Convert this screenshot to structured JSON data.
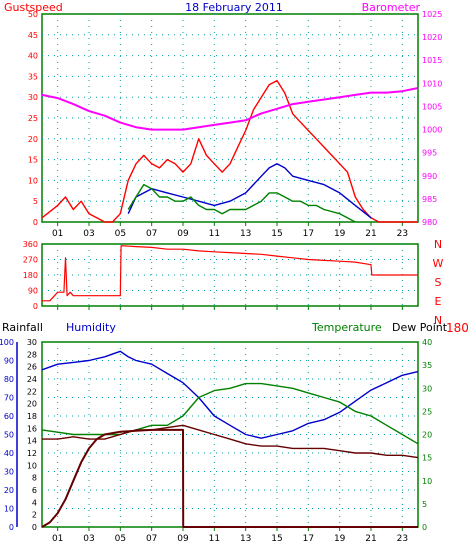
{
  "colors": {
    "red": "#ff0000",
    "green": "#008000",
    "blue": "#0000cc",
    "magenta": "#ff00ff",
    "darkred": "#660000",
    "axis": "#008000",
    "grid": "#00a0a0"
  },
  "chart_data": [
    {
      "type": "line",
      "title": "18 February 2011",
      "left_label": "Gustspeed",
      "right_label": "Barometer",
      "x_ticks": [
        "01",
        "03",
        "05",
        "07",
        "09",
        "11",
        "13",
        "15",
        "17",
        "19",
        "21",
        "23"
      ],
      "ylim_left": [
        0,
        50
      ],
      "ylim_right": [
        980,
        1025
      ],
      "yticks_left": [
        "0",
        "5",
        "10",
        "15",
        "20",
        "25",
        "30",
        "35",
        "40",
        "45",
        "50"
      ],
      "yticks_right": [
        "980",
        "985",
        "990",
        "995",
        "1000",
        "1005",
        "1010",
        "1015",
        "1020",
        "1025"
      ],
      "grid": true,
      "series": [
        {
          "color": "red",
          "axis": "left",
          "x": [
            0,
            1,
            1.5,
            2,
            2.5,
            3,
            3.5,
            4,
            4.5,
            5,
            5.5,
            6,
            6.5,
            7,
            7.5,
            8,
            8.5,
            9,
            9.5,
            10,
            10.5,
            11,
            11.5,
            12,
            12.5,
            13,
            13.5,
            14,
            14.5,
            15,
            15.5,
            16,
            16.5,
            17,
            17.5,
            18,
            18.5,
            19,
            19.5,
            20,
            20.5,
            21,
            21.5,
            22,
            23,
            24
          ],
          "y": [
            1,
            4,
            6,
            3,
            5,
            2,
            1,
            0,
            0,
            2,
            10,
            14,
            16,
            14,
            13,
            15,
            14,
            12,
            14,
            20,
            16,
            14,
            12,
            14,
            18,
            22,
            27,
            30,
            33,
            34,
            31,
            26,
            24,
            22,
            20,
            18,
            16,
            14,
            12,
            6,
            3,
            1,
            0,
            0,
            0,
            0
          ]
        },
        {
          "color": "blue",
          "axis": "left",
          "x": [
            5.5,
            6,
            7,
            8,
            9,
            10,
            11,
            12,
            13,
            14,
            14.5,
            15,
            15.5,
            16,
            17,
            18,
            19,
            20,
            21
          ],
          "y": [
            2,
            6,
            8,
            7,
            6,
            5,
            4,
            5,
            7,
            11,
            13,
            14,
            13,
            11,
            10,
            9,
            7,
            4,
            1
          ]
        },
        {
          "color": "green",
          "axis": "left",
          "x": [
            5.5,
            6,
            6.5,
            7,
            7.5,
            8,
            8.5,
            9,
            9.5,
            10,
            10.5,
            11,
            11.5,
            12,
            12.5,
            13,
            13.5,
            14,
            14.5,
            15,
            15.5,
            16,
            16.5,
            17,
            17.5,
            18,
            19,
            20
          ],
          "y": [
            3,
            6,
            9,
            8,
            6,
            6,
            5,
            5,
            6,
            4,
            3,
            3,
            2,
            3,
            3,
            3,
            4,
            5,
            7,
            7,
            6,
            5,
            5,
            4,
            4,
            3,
            2,
            0
          ]
        },
        {
          "color": "magenta",
          "axis": "right",
          "x": [
            0,
            1,
            2,
            3,
            4,
            5,
            6,
            7,
            8,
            9,
            10,
            11,
            12,
            13,
            14,
            15,
            16,
            17,
            18,
            19,
            20,
            21,
            22,
            23,
            24
          ],
          "y": [
            1007.5,
            1006.8,
            1005.5,
            1004,
            1003,
            1001.5,
            1000.5,
            1000,
            1000,
            1000,
            1000.5,
            1001,
            1001.5,
            1002,
            1003.5,
            1004.5,
            1005.5,
            1006,
            1006.5,
            1007,
            1007.5,
            1008,
            1008,
            1008.3,
            1009
          ]
        }
      ]
    },
    {
      "type": "line",
      "ylim": [
        0,
        360
      ],
      "yticks": [
        "0",
        "90",
        "180",
        "270",
        "360"
      ],
      "compass": [
        "N",
        "W",
        "S",
        "E",
        "N"
      ],
      "right_note": "180°",
      "grid": true,
      "series": [
        {
          "color": "red",
          "x": [
            0,
            0.5,
            1,
            1.4,
            1.5,
            1.6,
            1.8,
            2,
            3,
            4,
            4.5,
            5,
            5.05,
            6,
            7,
            8,
            9,
            10,
            11,
            12,
            13,
            14,
            15,
            16,
            17,
            18,
            19,
            20,
            21,
            21.05,
            24
          ],
          "y": [
            30,
            30,
            80,
            80,
            280,
            60,
            80,
            60,
            60,
            60,
            60,
            60,
            350,
            345,
            340,
            330,
            330,
            320,
            315,
            310,
            305,
            300,
            290,
            280,
            270,
            265,
            260,
            255,
            240,
            180,
            180
          ]
        }
      ]
    },
    {
      "type": "line",
      "labels": [
        "Rainfall",
        "Humidity",
        "Temperature",
        "Dew Point"
      ],
      "ylim_rain": [
        0,
        20
      ],
      "yticks_rain": [
        "0",
        "2",
        "4",
        "6",
        "8",
        "10",
        "12",
        "14",
        "16",
        "18",
        "20"
      ],
      "ylim_humidity": [
        0,
        100
      ],
      "yticks_humidity": [
        "0",
        "10",
        "20",
        "30",
        "40",
        "50",
        "60",
        "70",
        "80",
        "90",
        "100"
      ],
      "ylim_temp": [
        0,
        40
      ],
      "yticks_temp": [
        "0",
        "5",
        "10",
        "15",
        "20",
        "25",
        "30",
        "35",
        "40"
      ],
      "ylim_inner": [
        0,
        30
      ],
      "yticks_inner": [
        "0",
        "2",
        "4",
        "6",
        "8",
        "10",
        "12",
        "14",
        "16",
        "18",
        "20",
        "22",
        "24",
        "26",
        "28",
        "30"
      ],
      "grid": true,
      "series": [
        {
          "name": "Humidity",
          "color": "blue",
          "scale": "humidity",
          "x": [
            0,
            1,
            2,
            3,
            4,
            5,
            5.5,
            6,
            7,
            8,
            9,
            10,
            11,
            12,
            13,
            14,
            15,
            16,
            17,
            18,
            19,
            20,
            21,
            22,
            23,
            24
          ],
          "y": [
            85,
            88,
            89,
            90,
            92,
            95,
            92,
            90,
            88,
            83,
            78,
            70,
            60,
            55,
            50,
            48,
            50,
            52,
            56,
            58,
            62,
            68,
            74,
            78,
            82,
            84
          ]
        },
        {
          "name": "Temperature",
          "color": "green",
          "scale": "temp",
          "x": [
            0,
            1,
            2,
            3,
            4,
            5,
            6,
            7,
            8,
            9,
            10,
            11,
            12,
            13,
            14,
            15,
            16,
            17,
            18,
            19,
            20,
            21,
            22,
            23,
            24
          ],
          "y": [
            21,
            20.5,
            20,
            20,
            20,
            20,
            21,
            22,
            22,
            24,
            28,
            29.5,
            30,
            31,
            31,
            30.5,
            30,
            29,
            28,
            27,
            25,
            24,
            22,
            20,
            18
          ]
        },
        {
          "name": "Dew Point",
          "color": "darkred",
          "scale": "temp",
          "x": [
            0,
            1,
            2,
            3,
            4,
            5,
            6,
            7,
            8,
            9,
            10,
            11,
            12,
            13,
            14,
            15,
            16,
            17,
            18,
            19,
            20,
            21,
            22,
            23,
            24
          ],
          "y": [
            19,
            19,
            19.5,
            19,
            19,
            20,
            21,
            21,
            21.5,
            22,
            21,
            20,
            19,
            18,
            17.5,
            17.5,
            17,
            17,
            17,
            16.5,
            16,
            16,
            15.5,
            15.5,
            15
          ]
        },
        {
          "name": "Rainfall",
          "color": "darkred",
          "scale": "rain",
          "x": [
            0,
            0.5,
            1,
            1.5,
            2,
            2.5,
            3,
            3.5,
            4,
            5,
            6,
            7,
            8,
            9,
            9.01,
            24
          ],
          "y": [
            0,
            0.5,
            1.5,
            3,
            5,
            7,
            8.5,
            9.5,
            10,
            10.3,
            10.4,
            10.5,
            10.5,
            10.5,
            0,
            0
          ]
        }
      ]
    }
  ]
}
